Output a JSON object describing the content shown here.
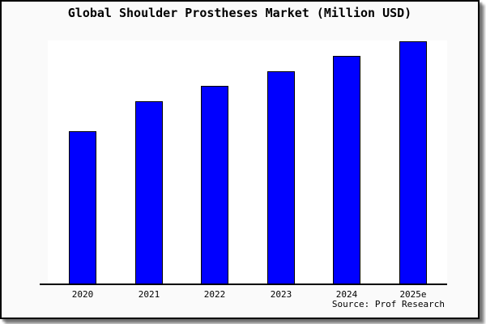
{
  "title": "Global Shoulder Prostheses Market (Million USD)",
  "source_credit": "Source: Prof Research",
  "colors": {
    "bar_fill": "#0000ff",
    "bar_border": "#000000",
    "card_background": "#fafafa",
    "plot_background": "#ffffff",
    "axis": "#000000",
    "frame_border": "#000000"
  },
  "chart_data": {
    "type": "bar",
    "title": "Global Shoulder Prostheses Market (Million USD)",
    "categories": [
      "2020",
      "2021",
      "2022",
      "2023",
      "2024",
      "2025e"
    ],
    "values": [
      63.1,
      75.4,
      81.7,
      87.7,
      94.0,
      100.0
    ],
    "value_scale_note": "y-axis has no tick labels or gridlines; values estimated as bar height in % of the tallest (2025e) bar",
    "xlabel": "",
    "ylabel": "",
    "ylim": [
      0,
      100
    ],
    "grid": false,
    "legend": "none",
    "source": "Source: Prof Research"
  }
}
